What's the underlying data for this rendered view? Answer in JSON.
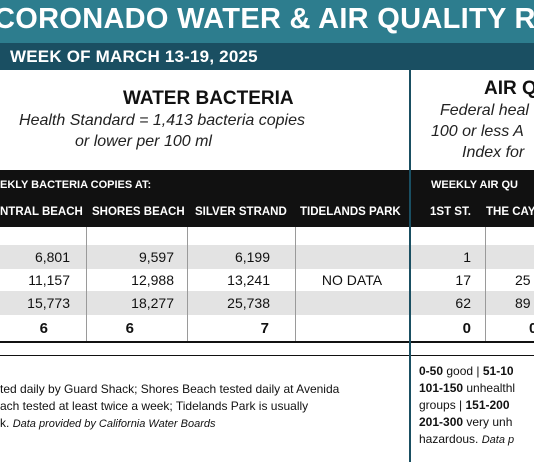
{
  "title": "CORONADO WATER & AIR QUALITY R",
  "subtitle": "WEEK OF MARCH 13-19, 2025",
  "water": {
    "heading": "WATER BACTERIA",
    "standard_line1": "Health Standard  = 1,413 bacteria copies",
    "standard_line2": "or lower per 100 ml",
    "band_label": "EKLY BACTERIA COPIES AT:",
    "columns": [
      "NTRAL BEACH",
      "SHORES BEACH",
      "SILVER STRAND",
      "TIDELANDS PARK"
    ],
    "rows": [
      [
        "6,801",
        "9,597",
        "6,199",
        ""
      ],
      [
        "11,157",
        "12,988",
        "13,241",
        "NO DATA"
      ],
      [
        "15,773",
        "18,277",
        "25,738",
        ""
      ],
      [
        "6",
        "6",
        "7",
        ""
      ]
    ],
    "footnote_line1": "ted daily by Guard Shack; Shores Beach tested daily at Avenida",
    "footnote_line2": "ach tested at least twice a week; Tidelands Park is usually",
    "footnote_line3_prefix": "k.",
    "footnote_line3_italic": "Data provided by California Water Boards"
  },
  "air": {
    "heading": "AIR Q",
    "desc_line1": "Federal heal",
    "desc_line2": "100 or less A",
    "desc_line3": "Index for",
    "band_label": "WEEKLY AIR QU",
    "columns": [
      "1ST ST.",
      "THE CAY"
    ],
    "rows": [
      [
        "1",
        ""
      ],
      [
        "17",
        "25"
      ],
      [
        "62",
        "89"
      ],
      [
        "0",
        "0"
      ]
    ],
    "scale_line1_a": "0-50",
    "scale_line1_b": " good | ",
    "scale_line1_c": "51-10",
    "scale_line2_a": "101-150",
    "scale_line2_b": " unhealthl",
    "scale_line3_a": "groups | ",
    "scale_line3_b": "151-200",
    "scale_line4_a": "201-300",
    "scale_line4_b": " very unh",
    "scale_line5_a": "hazardous. ",
    "scale_line5_b": "Data p"
  }
}
